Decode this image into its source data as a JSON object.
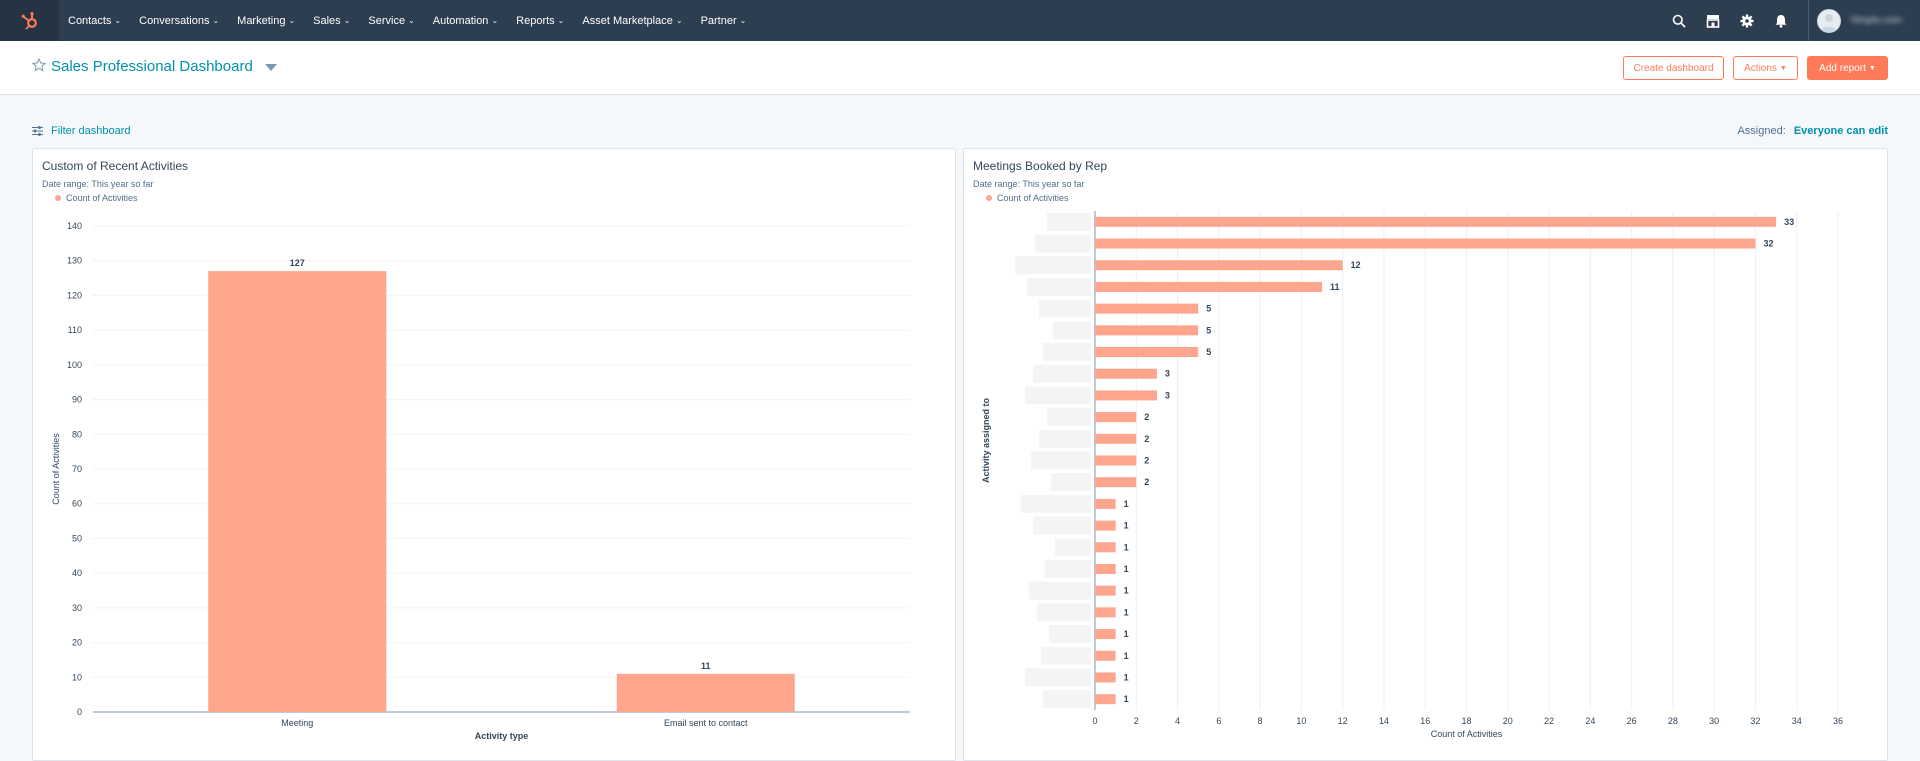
{
  "nav": {
    "items": [
      {
        "label": "Contacts"
      },
      {
        "label": "Conversations"
      },
      {
        "label": "Marketing"
      },
      {
        "label": "Sales"
      },
      {
        "label": "Service"
      },
      {
        "label": "Automation"
      },
      {
        "label": "Reports"
      },
      {
        "label": "Asset Marketplace"
      },
      {
        "label": "Partner"
      }
    ],
    "icons": [
      "search-icon",
      "marketplace-icon",
      "settings-gear-icon",
      "notifications-bell-icon"
    ],
    "account_name": "hlmpts.com"
  },
  "header": {
    "title": "Sales Professional Dashboard",
    "create_dashboard": "Create dashboard",
    "actions": "Actions",
    "add_report": "Add report"
  },
  "filter": {
    "label": "Filter dashboard",
    "assigned_label": "Assigned:",
    "assigned_value": "Everyone can edit"
  },
  "colors": {
    "accent": "#ff7a59",
    "link": "#0091ae",
    "bar": "#fea58e",
    "nav_bg": "#2d3e50"
  },
  "chart_data": [
    {
      "type": "bar",
      "title": "Custom of Recent Activities",
      "date_range": "Date range: This year so far",
      "legend": [
        "Count of Activities"
      ],
      "categories": [
        "Meeting",
        "Email sent to contact"
      ],
      "series": [
        {
          "name": "Count of Activities",
          "values": [
            127,
            11
          ]
        }
      ],
      "xlabel": "Activity type",
      "ylabel": "Count of Activities",
      "ylim": [
        0,
        140
      ],
      "yticks": [
        0,
        10,
        20,
        30,
        40,
        50,
        60,
        70,
        80,
        90,
        100,
        110,
        120,
        130,
        140
      ],
      "grid": true
    },
    {
      "type": "bar",
      "orientation": "horizontal",
      "title": "Meetings Booked by Rep",
      "date_range": "Date range: This year so far",
      "legend": [
        "Count of Activities"
      ],
      "series": [
        {
          "name": "Count of Activities",
          "values": [
            33,
            32,
            12,
            11,
            5,
            5,
            5,
            3,
            3,
            2,
            2,
            2,
            2,
            1,
            1,
            1,
            1,
            1,
            1,
            1,
            1,
            1,
            1
          ]
        }
      ],
      "xlabel": "Count of Activities",
      "ylabel": "Activity assigned to",
      "xlim": [
        0,
        36
      ],
      "xticks": [
        0,
        2,
        4,
        6,
        8,
        10,
        12,
        14,
        16,
        18,
        20,
        22,
        24,
        26,
        28,
        30,
        32,
        34,
        36
      ],
      "grid": true
    }
  ]
}
